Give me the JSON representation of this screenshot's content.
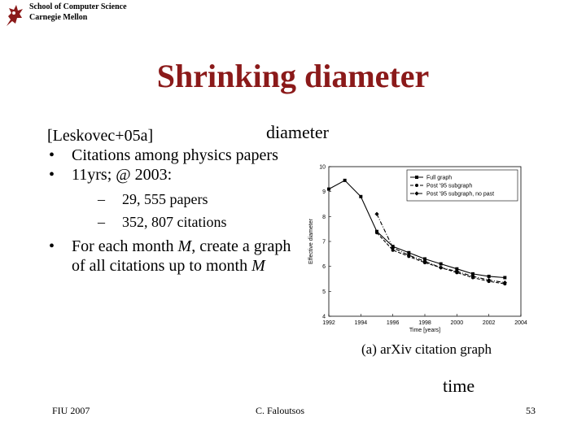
{
  "header": {
    "school": "School of Computer Science",
    "university": "Carnegie Mellon"
  },
  "title": "Shrinking diameter",
  "body": {
    "ref": "[Leskovec+05a]",
    "bullets": [
      {
        "text": "Citations among physics papers"
      },
      {
        "text": "11yrs; @ 2003:",
        "sub": [
          "29, 555 papers",
          "352, 807 citations"
        ]
      },
      {
        "pre": "For each month ",
        "italic": "M",
        "mid": ", create a graph of all citations up to month ",
        "italic2": "M"
      }
    ]
  },
  "labels": {
    "diameter": "diameter",
    "time": "time"
  },
  "chart_data": {
    "type": "line",
    "caption": "(a) arXiv citation graph",
    "xlabel": "Time [years]",
    "ylabel": "Effective diameter",
    "xlim": [
      1992,
      2004
    ],
    "ylim": [
      4,
      10
    ],
    "x_ticks": [
      1992,
      1994,
      1996,
      1998,
      2000,
      2002,
      2004
    ],
    "y_ticks": [
      4,
      5,
      6,
      7,
      8,
      9,
      10
    ],
    "legend_position": "top-right",
    "series": [
      {
        "name": "Full graph",
        "style": "solid",
        "marker": "square",
        "points": [
          [
            1992,
            9.1
          ],
          [
            1993,
            9.45
          ],
          [
            1994,
            8.8
          ],
          [
            1995,
            7.4
          ],
          [
            1996,
            6.8
          ],
          [
            1997,
            6.55
          ],
          [
            1998,
            6.3
          ],
          [
            1999,
            6.1
          ],
          [
            2000,
            5.9
          ],
          [
            2001,
            5.7
          ],
          [
            2002,
            5.6
          ],
          [
            2003,
            5.55
          ]
        ]
      },
      {
        "name": "Post '95 subgraph",
        "style": "dashed",
        "marker": "circle",
        "points": [
          [
            1995,
            7.35
          ],
          [
            1996,
            6.65
          ],
          [
            1997,
            6.4
          ],
          [
            1998,
            6.15
          ],
          [
            1999,
            5.95
          ],
          [
            2000,
            5.75
          ],
          [
            2001,
            5.55
          ],
          [
            2002,
            5.4
          ],
          [
            2003,
            5.3
          ]
        ]
      },
      {
        "name": "Post '95 subgraph, no past",
        "style": "dashdot",
        "marker": "diamond",
        "points": [
          [
            1995,
            8.1
          ],
          [
            1996,
            6.75
          ],
          [
            1997,
            6.45
          ],
          [
            1998,
            6.2
          ],
          [
            1999,
            5.95
          ],
          [
            2000,
            5.8
          ],
          [
            2001,
            5.6
          ],
          [
            2002,
            5.45
          ],
          [
            2003,
            5.35
          ]
        ]
      }
    ]
  },
  "footer": {
    "left": "FIU 2007",
    "center": "C. Faloutsos",
    "page": "53"
  }
}
